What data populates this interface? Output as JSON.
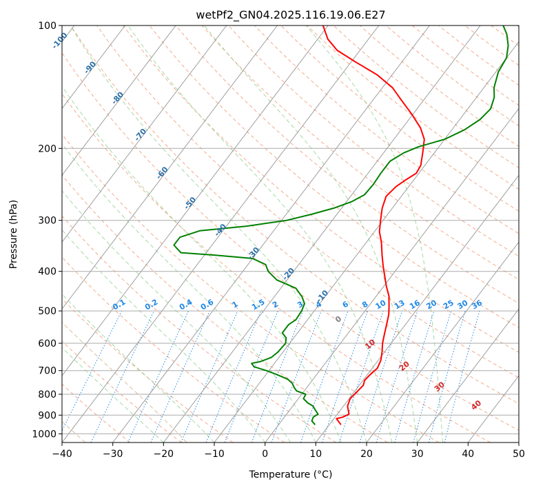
{
  "chart_data": {
    "type": "line",
    "title": "wetPf2_GN04.2025.116.19.06.E27",
    "xlabel": "Temperature (°C)",
    "ylabel": "Pressure (hPa)",
    "xlim": [
      -40,
      50
    ],
    "ylim": [
      1050,
      100
    ],
    "y_scale": "log",
    "grid": true,
    "xticks": [
      "−40",
      "−30",
      "−20",
      "−10",
      "0",
      "10",
      "20",
      "30",
      "40",
      "50"
    ],
    "yticks": [
      "100",
      "200",
      "300",
      "400",
      "500",
      "600",
      "700",
      "800",
      "900",
      "1000"
    ],
    "skew_isotherm_labels": [
      "-100",
      "-90",
      "-80",
      "-70",
      "-60",
      "-50",
      "-40",
      "-30",
      "-20",
      "-10"
    ],
    "mixing_ratio_labels": [
      "0.1",
      "0.2",
      "0.4",
      "0.6",
      "1",
      "1.5",
      "2",
      "3",
      "4",
      "6",
      "8",
      "10",
      "13",
      "16",
      "20",
      "25",
      "30",
      "36"
    ],
    "theta_labels": [
      "0",
      "10",
      "20",
      "30",
      "40"
    ],
    "series": [
      {
        "color": "#ff0000",
        "points": [
          [
            12.3,
            950
          ],
          [
            10.5,
            918
          ],
          [
            11.5,
            910
          ],
          [
            12.3,
            895
          ],
          [
            10.8,
            855
          ],
          [
            10.2,
            820
          ],
          [
            10.5,
            790
          ],
          [
            10.8,
            760
          ],
          [
            10.3,
            740
          ],
          [
            10.5,
            720
          ],
          [
            11.0,
            690
          ],
          [
            10.5,
            660
          ],
          [
            9.5,
            630
          ],
          [
            8.3,
            600
          ],
          [
            7.3,
            570
          ],
          [
            6.3,
            540
          ],
          [
            5.2,
            510
          ],
          [
            4.2,
            490
          ],
          [
            2.5,
            460
          ],
          [
            0.5,
            435
          ],
          [
            -1.0,
            415
          ],
          [
            -3.0,
            390
          ],
          [
            -5.0,
            365
          ],
          [
            -7.0,
            340
          ],
          [
            -9.0,
            320
          ],
          [
            -10.5,
            300
          ],
          [
            -12.0,
            280
          ],
          [
            -13.0,
            262
          ],
          [
            -12.5,
            248
          ],
          [
            -11.5,
            238
          ],
          [
            -10.5,
            230
          ],
          [
            -10.8,
            220
          ],
          [
            -12.3,
            205
          ],
          [
            -14.0,
            190
          ],
          [
            -16.5,
            178
          ],
          [
            -20.2,
            165
          ],
          [
            -24.5,
            152
          ],
          [
            -28.0,
            142
          ],
          [
            -33.0,
            132
          ],
          [
            -39.0,
            123
          ],
          [
            -44.5,
            115
          ],
          [
            -48.0,
            108
          ],
          [
            -51.0,
            100
          ]
        ]
      },
      {
        "color": "#008000",
        "points": [
          [
            7.2,
            950
          ],
          [
            6.0,
            930
          ],
          [
            5.7,
            910
          ],
          [
            6.2,
            895
          ],
          [
            4.8,
            870
          ],
          [
            4.0,
            855
          ],
          [
            2.5,
            840
          ],
          [
            1.0,
            820
          ],
          [
            0.8,
            800
          ],
          [
            -1.5,
            785
          ],
          [
            -2.5,
            770
          ],
          [
            -3.5,
            752
          ],
          [
            -5.0,
            735
          ],
          [
            -8.0,
            715
          ],
          [
            -10.5,
            700
          ],
          [
            -13.5,
            685
          ],
          [
            -14.5,
            672
          ],
          [
            -13.0,
            665
          ],
          [
            -11.5,
            650
          ],
          [
            -11.0,
            630
          ],
          [
            -10.8,
            600
          ],
          [
            -11.5,
            582
          ],
          [
            -13.0,
            566
          ],
          [
            -13.0,
            540
          ],
          [
            -12.3,
            525
          ],
          [
            -12.5,
            500
          ],
          [
            -13.0,
            480
          ],
          [
            -14.5,
            462
          ],
          [
            -17.0,
            440
          ],
          [
            -22.0,
            420
          ],
          [
            -25.0,
            400
          ],
          [
            -26.5,
            385
          ],
          [
            -30.0,
            372
          ],
          [
            -38.0,
            365
          ],
          [
            -45.0,
            360
          ],
          [
            -47.5,
            345
          ],
          [
            -47.5,
            330
          ],
          [
            -44.5,
            318
          ],
          [
            -36.0,
            310
          ],
          [
            -29.0,
            300
          ],
          [
            -25.0,
            290
          ],
          [
            -21.5,
            280
          ],
          [
            -19.0,
            270
          ],
          [
            -17.5,
            260
          ],
          [
            -17.3,
            245
          ],
          [
            -17.5,
            230
          ],
          [
            -17.5,
            215
          ],
          [
            -16.0,
            205
          ],
          [
            -14.0,
            198
          ],
          [
            -10.0,
            190
          ],
          [
            -7.5,
            180
          ],
          [
            -6.0,
            170
          ],
          [
            -5.5,
            160
          ],
          [
            -6.5,
            150
          ],
          [
            -8.0,
            142
          ],
          [
            -9.5,
            130
          ],
          [
            -10.0,
            120
          ],
          [
            -11.5,
            112
          ],
          [
            -13.5,
            105
          ],
          [
            -15.5,
            100
          ]
        ]
      }
    ]
  }
}
